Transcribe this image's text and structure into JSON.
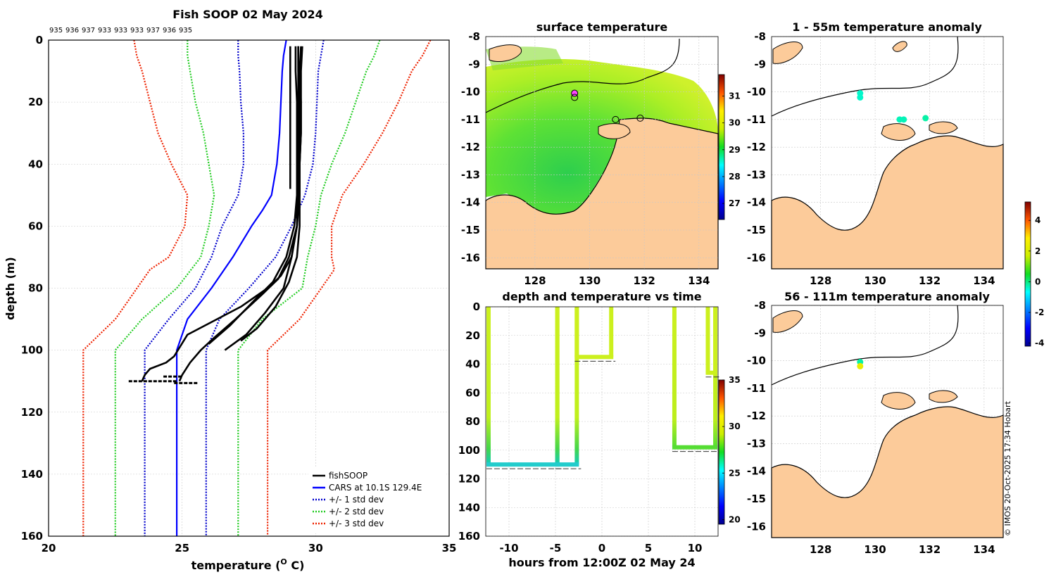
{
  "figure": {
    "credit": "© IMOS 20-Oct-2025 17:34 Hobart"
  },
  "profile": {
    "title": "Fish SOOP 02 May 2024",
    "id_labels": [
      "935",
      "936",
      "937",
      "933",
      "933",
      "933",
      "937",
      "936",
      "935"
    ],
    "xlabel": "temperature (",
    "xlabel_sup": "O",
    "xlabel_end": " C)",
    "ylabel": "depth (m)",
    "legend": [
      "fishSOOP",
      "CARS at 10.1S 129.4E",
      "+/- 1 std dev",
      "+/- 2 std dev",
      "+/- 3 std dev"
    ]
  },
  "surface": {
    "title": "surface temperature"
  },
  "dt": {
    "title": "depth and temperature vs time",
    "xlabel": "hours from 12:00Z 02 May 24"
  },
  "anom1": {
    "title": "1 - 55m temperature anomaly"
  },
  "anom2": {
    "title": "56 - 111m temperature anomaly"
  },
  "colors": {
    "land": "#fccb9a",
    "cars": "#0000ff",
    "std1": "#0000cc",
    "std2": "#22cc22",
    "std3": "#ee2200",
    "fish": "#000000"
  },
  "chart_data": [
    {
      "id": "profile",
      "type": "line",
      "title": "Fish SOOP 02 May 2024",
      "xlabel": "temperature (O C)",
      "ylabel": "depth (m)",
      "xlim": [
        20,
        35
      ],
      "ylim": [
        160,
        0
      ],
      "xticks": [
        20,
        25,
        30,
        35
      ],
      "yticks": [
        0,
        20,
        40,
        60,
        80,
        100,
        120,
        140,
        160
      ],
      "grid": true,
      "legend_position": "bottom-right",
      "series": [
        {
          "name": "CARS at 10.1S 129.4E",
          "style": "solid",
          "color": "#0000ff",
          "x": [
            28.9,
            28.8,
            28.75,
            28.7,
            28.65,
            28.55,
            28.35,
            28.0,
            27.6,
            26.9,
            26.1,
            25.2,
            24.8,
            24.8,
            24.8
          ],
          "y": [
            0,
            5,
            10,
            20,
            30,
            40,
            50,
            55,
            60,
            70,
            80,
            90,
            100,
            110,
            160
          ]
        },
        {
          "name": "+/- 1 std dev",
          "style": "dotted",
          "color": "#0000cc",
          "x": [
            30.3,
            30.2,
            30.1,
            30.05,
            30.0,
            29.9,
            29.6,
            29.1,
            28.5,
            27.5,
            26.4,
            25.9,
            25.9,
            25.9
          ],
          "y": [
            0,
            5,
            10,
            20,
            30,
            40,
            50,
            60,
            70,
            80,
            90,
            100,
            110,
            160
          ]
        },
        {
          "name": "+/- 1 std dev",
          "style": "dotted",
          "color": "#0000cc",
          "x": [
            27.1,
            27.1,
            27.15,
            27.2,
            27.3,
            27.3,
            27.1,
            26.5,
            26.1,
            25.5,
            24.5,
            23.6,
            23.6,
            23.6
          ],
          "y": [
            0,
            5,
            10,
            20,
            30,
            40,
            50,
            60,
            70,
            80,
            90,
            100,
            110,
            160
          ]
        },
        {
          "name": "+/- 2 std dev",
          "style": "dotted",
          "color": "#22cc22",
          "x": [
            32.4,
            32.2,
            31.9,
            31.5,
            31.1,
            30.6,
            30.2,
            30.0,
            29.7,
            29.5,
            28.0,
            27.1,
            27.1,
            27.1
          ],
          "y": [
            0,
            5,
            10,
            20,
            30,
            40,
            50,
            60,
            70,
            80,
            90,
            100,
            110,
            160
          ]
        },
        {
          "name": "+/- 2 std dev",
          "style": "dotted",
          "color": "#22cc22",
          "x": [
            25.2,
            25.2,
            25.3,
            25.5,
            25.8,
            26.0,
            26.2,
            26.0,
            25.7,
            24.8,
            23.5,
            22.5,
            22.5,
            22.5
          ],
          "y": [
            0,
            5,
            10,
            20,
            30,
            40,
            50,
            60,
            70,
            80,
            90,
            100,
            110,
            160
          ]
        },
        {
          "name": "+/- 3 std dev",
          "style": "dotted",
          "color": "#ee2200",
          "x": [
            34.3,
            34.0,
            33.6,
            33.1,
            32.5,
            31.8,
            31.0,
            30.6,
            30.6,
            30.7,
            29.4,
            28.2,
            28.2,
            28.2
          ],
          "y": [
            0,
            5,
            10,
            20,
            30,
            40,
            50,
            60,
            70,
            74,
            90,
            100,
            110,
            160
          ]
        },
        {
          "name": "+/- 3 std dev",
          "style": "dotted",
          "color": "#ee2200",
          "x": [
            23.2,
            23.3,
            23.5,
            23.8,
            24.1,
            24.6,
            25.2,
            25.1,
            24.5,
            23.8,
            22.5,
            21.3,
            21.3,
            21.3
          ],
          "y": [
            0,
            5,
            10,
            20,
            30,
            40,
            50,
            60,
            70,
            74,
            90,
            100,
            110,
            160
          ]
        },
        {
          "name": "fishSOOP",
          "style": "solid",
          "color": "#000000",
          "x": [
            29.35,
            29.35,
            29.4,
            29.4,
            29.35,
            29.35,
            29.3,
            29.1,
            28.7,
            28.2,
            27.2,
            25.2,
            24.7,
            24.4,
            23.8,
            23.6,
            23.5
          ],
          "y": [
            2,
            10,
            20,
            30,
            40,
            50,
            60,
            70,
            76,
            80,
            86,
            95,
            102,
            104,
            106,
            108,
            110
          ]
        },
        {
          "name": "fishSOOP",
          "style": "solid",
          "color": "#000000",
          "x": [
            29.45,
            29.4,
            29.45,
            29.45,
            29.4,
            29.4,
            29.3,
            29.0,
            28.6,
            28.0,
            27.0,
            26.2,
            25.7,
            25.3,
            25.0,
            24.9
          ],
          "y": [
            2,
            10,
            20,
            30,
            40,
            50,
            60,
            70,
            77,
            82,
            90,
            96,
            100,
            104,
            108,
            110
          ]
        },
        {
          "name": "fishSOOP",
          "style": "solid",
          "color": "#000000",
          "x": [
            29.25,
            29.25,
            29.3,
            29.3,
            29.3,
            29.3,
            29.2,
            28.9,
            28.4,
            27.7,
            26.8,
            26.0
          ],
          "y": [
            2,
            10,
            20,
            30,
            40,
            50,
            60,
            70,
            78,
            84,
            92,
            98
          ]
        },
        {
          "name": "fishSOOP",
          "style": "solid",
          "color": "#000000",
          "x": [
            29.5,
            29.45,
            29.45,
            29.45,
            29.4,
            29.4,
            29.4,
            29.3,
            29.0,
            28.5,
            27.8,
            27.2
          ],
          "y": [
            2,
            10,
            20,
            30,
            40,
            50,
            60,
            70,
            78,
            86,
            93,
            97
          ]
        },
        {
          "name": "fishSOOP",
          "style": "solid",
          "color": "#000000",
          "x": [
            29.35,
            29.35,
            29.35,
            29.35,
            29.3,
            29.3,
            29.3,
            29.1,
            28.8,
            28.1,
            27.4,
            26.6
          ],
          "y": [
            2,
            10,
            20,
            30,
            40,
            50,
            60,
            70,
            80,
            88,
            95,
            100
          ]
        },
        {
          "name": "fishSOOP",
          "style": "solid",
          "color": "#000000",
          "x": [
            29.05,
            29.05
          ],
          "y": [
            2,
            48
          ]
        }
      ]
    },
    {
      "id": "surface",
      "type": "heatmap",
      "title": "surface temperature",
      "xlim": [
        126.2,
        134.7
      ],
      "ylim": [
        -16.4,
        -8
      ],
      "xticks": [
        128,
        130,
        132,
        134
      ],
      "yticks": [
        -8,
        -9,
        -10,
        -11,
        -12,
        -13,
        -14,
        -15,
        -16
      ],
      "colorbar": {
        "range": [
          26.4,
          31.8
        ],
        "ticks": [
          27,
          28,
          29,
          30,
          31
        ]
      },
      "markers": [
        [
          129.45,
          -10.05
        ],
        [
          129.45,
          -10.2
        ],
        [
          130.95,
          -11.0
        ],
        [
          131.85,
          -10.95
        ]
      ]
    },
    {
      "id": "depth_time",
      "type": "scatter",
      "title": "depth and temperature vs time",
      "xlabel": "hours from 12:00Z 02 May 24",
      "xlim": [
        -12.5,
        12.5
      ],
      "ylim": [
        160,
        0
      ],
      "xticks": [
        -10,
        -5,
        0,
        5,
        10
      ],
      "yticks": [
        0,
        20,
        40,
        60,
        80,
        100,
        120,
        140,
        160
      ],
      "colorbar": {
        "range": [
          19.5,
          35
        ],
        "ticks": [
          20,
          25,
          30,
          35
        ]
      },
      "series": [
        {
          "name": "drop 1",
          "x": [
            -12.2,
            -4.8
          ],
          "y_bottom": 110
        },
        {
          "name": "drop 2",
          "x": [
            -4.8,
            -2.7
          ],
          "y_bottom": 110
        },
        {
          "name": "drop 3",
          "x": [
            -2.7,
            1.0
          ],
          "y_bottom": 35
        },
        {
          "name": "drop 4",
          "x": [
            7.8,
            12.2
          ],
          "y_bottom": 98
        },
        {
          "name": "drop 5",
          "x": [
            11.4,
            12.2
          ],
          "y_bottom": 46
        }
      ]
    },
    {
      "id": "anom_shallow",
      "type": "scatter",
      "title": "1 - 55m temperature anomaly",
      "xlim": [
        126.2,
        134.7
      ],
      "ylim": [
        -16.4,
        -8
      ],
      "xticks": [
        128,
        130,
        132,
        134
      ],
      "yticks": [
        -8,
        -9,
        -10,
        -11,
        -12,
        -13,
        -14,
        -15,
        -16
      ],
      "colorbar": {
        "range": [
          -4.2,
          5.2
        ],
        "ticks": [
          -4,
          -2,
          0,
          2,
          4
        ]
      },
      "points": [
        {
          "lon": 129.45,
          "lat": -10.05,
          "anom": -0.4
        },
        {
          "lon": 129.45,
          "lat": -10.2,
          "anom": -0.4
        },
        {
          "lon": 130.9,
          "lat": -11.0,
          "anom": -0.3
        },
        {
          "lon": 131.05,
          "lat": -11.0,
          "anom": -0.3
        },
        {
          "lon": 131.85,
          "lat": -10.95,
          "anom": -0.2
        }
      ]
    },
    {
      "id": "anom_deep",
      "type": "scatter",
      "title": "56 - 111m temperature anomaly",
      "xlim": [
        126.2,
        134.7
      ],
      "ylim": [
        -16.4,
        -8
      ],
      "xticks": [
        128,
        130,
        132,
        134
      ],
      "yticks": [
        -8,
        -9,
        -10,
        -11,
        -12,
        -13,
        -14,
        -15,
        -16
      ],
      "colorbar": {
        "range": [
          -4.2,
          5.2
        ],
        "ticks": [
          -4,
          -2,
          0,
          2,
          4
        ]
      },
      "points": [
        {
          "lon": 129.45,
          "lat": -10.05,
          "anom": -0.2
        },
        {
          "lon": 129.45,
          "lat": -10.2,
          "anom": 2.3
        }
      ]
    }
  ]
}
